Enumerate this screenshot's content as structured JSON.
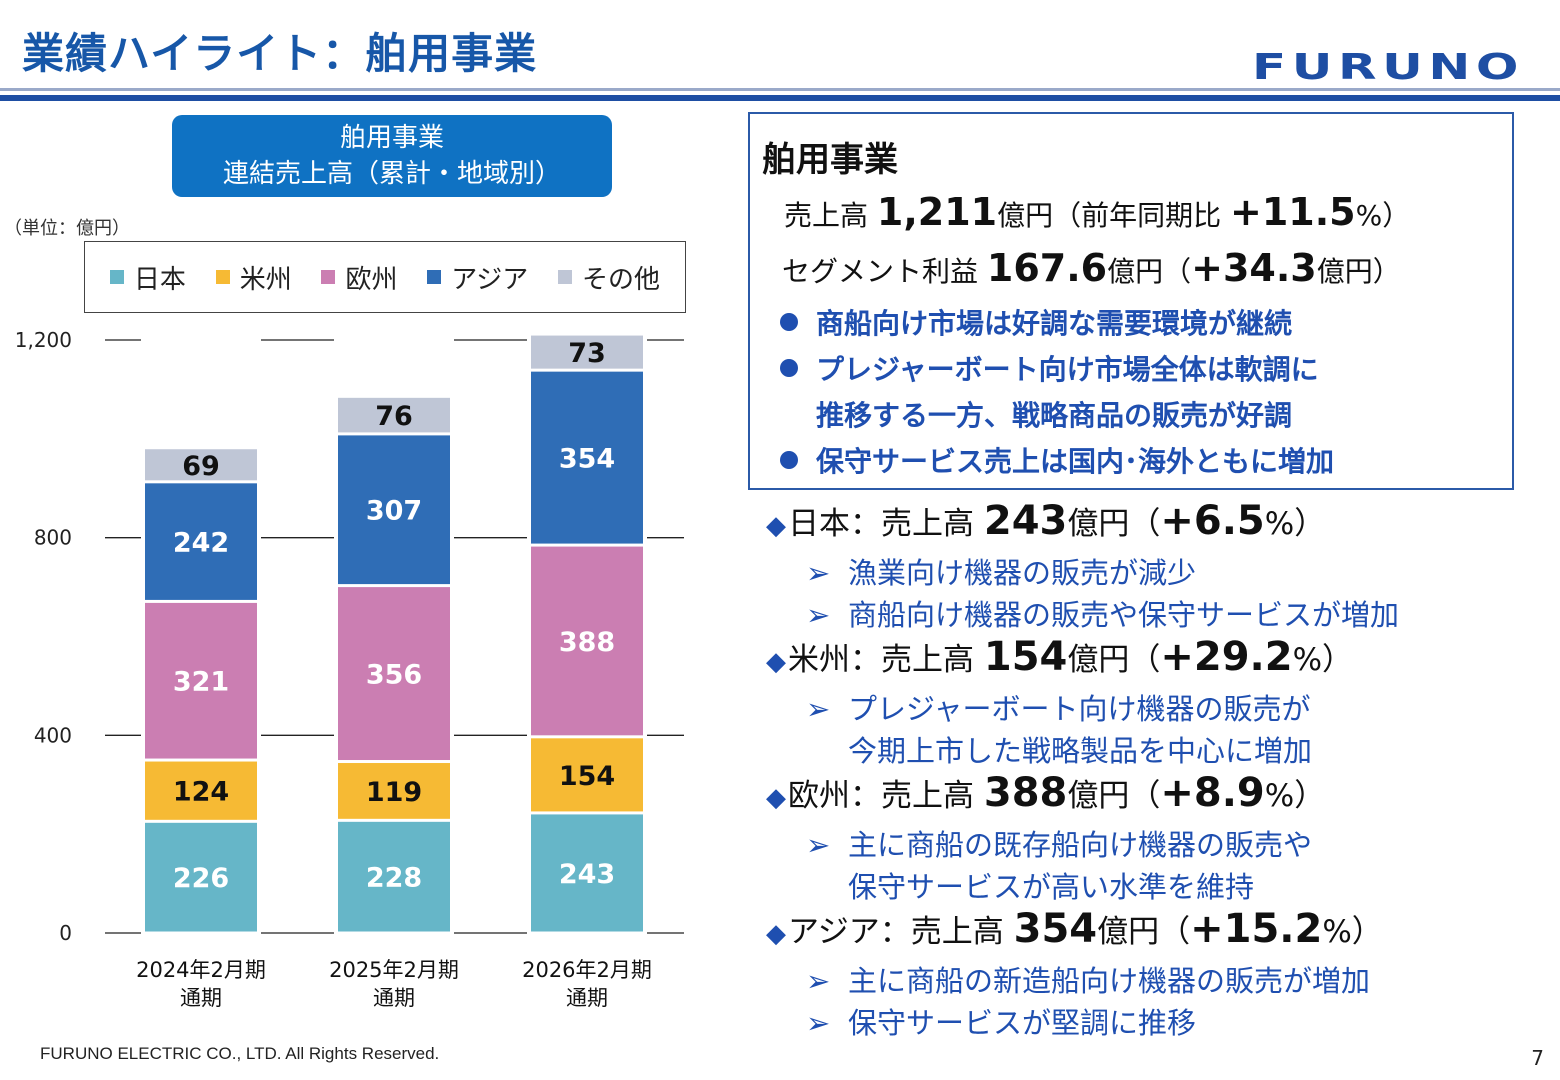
{
  "header": {
    "title": "業績ハイライト：舶用事業",
    "logo_text": "FURUNO",
    "logo_color": "#1e4ea3"
  },
  "chart_panel": {
    "label_line1": "舶用事業",
    "label_line2": "連結売上高（累計・地域別）",
    "unit": "（単位：億円）"
  },
  "chart_data": {
    "type": "bar",
    "stacked": true,
    "categories": [
      "2024年2月期|通期",
      "2025年2月期|通期",
      "2026年2月期|通期"
    ],
    "series": [
      {
        "name": "日本",
        "color": "#66b6c8",
        "values": [
          226,
          228,
          243
        ]
      },
      {
        "name": "米州",
        "color": "#f6ba34",
        "values": [
          124,
          119,
          154
        ]
      },
      {
        "name": "欧州",
        "color": "#cb7eb2",
        "values": [
          321,
          356,
          388
        ]
      },
      {
        "name": "アジア",
        "color": "#2f6db6",
        "values": [
          242,
          307,
          354
        ]
      },
      {
        "name": "その他",
        "color": "#bfc6d6",
        "values": [
          69,
          76,
          73
        ]
      }
    ],
    "yticks": [
      "0",
      "400",
      "800",
      "1,200"
    ],
    "ytick_values": [
      0,
      400,
      800,
      1200
    ],
    "ylim": [
      0,
      1200
    ],
    "legend_position": "top"
  },
  "summary": {
    "title": "舶用事業",
    "sales_prefix": "売上高 ",
    "sales_value": "1,211",
    "sales_unit": "億円（前年同期比 ",
    "sales_growth": "+11.5",
    "sales_suffix": "%）",
    "profit_prefix": "セグメント利益 ",
    "profit_value": "167.6",
    "profit_unit": "億円（",
    "profit_change": "+34.3",
    "profit_suffix": "億円）",
    "bullet1": "商船向け市場は好調な需要環境が継続",
    "bullet2a": "プレジャーボート向け市場全体は軟調に",
    "bullet2b": "推移する一方、戦略商品の販売が好調",
    "bullet3": "保守サービス売上は国内･海外ともに増加"
  },
  "regions": {
    "japan": {
      "label": "日本：売上高 ",
      "value": "243",
      "unit": "億円（",
      "growth": "+6.5",
      "suffix": "%）",
      "sub1": "漁業向け機器の販売が減少",
      "sub2": "商船向け機器の販売や保守サービスが増加"
    },
    "americas": {
      "label": "米州：売上高 ",
      "value": "154",
      "unit": "億円（",
      "growth": "+29.2",
      "suffix": "%）",
      "sub1": "プレジャーボート向け機器の販売が",
      "sub1b": "今期上市した戦略製品を中心に増加"
    },
    "europe": {
      "label": "欧州：売上高 ",
      "value": "388",
      "unit": "億円（",
      "growth": "+8.9",
      "suffix": "%）",
      "sub1": "主に商船の既存船向け機器の販売や",
      "sub1b": "保守サービスが高い水準を維持"
    },
    "asia": {
      "label": "アジア：売上高 ",
      "value": "354",
      "unit": "億円（",
      "growth": "+15.2",
      "suffix": "%）",
      "sub1": "主に商船の新造船向け機器の販売が増加",
      "sub2": "保守サービスが堅調に推移"
    }
  },
  "footer": {
    "copyright": "FURUNO ELECTRIC CO., LTD. All Rights Reserved.",
    "page_number": "7"
  }
}
